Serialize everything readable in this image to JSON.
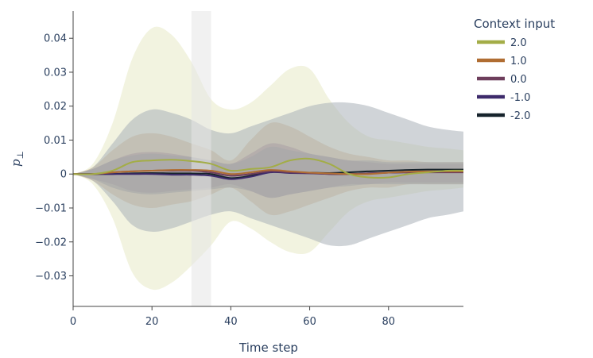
{
  "chart_data": {
    "type": "area",
    "xlabel": "Time step",
    "ylabel": "p",
    "ylabel_subscript": "⊥",
    "xlim": [
      0,
      99
    ],
    "ylim": [
      -0.039,
      0.048
    ],
    "xticks": [
      0,
      20,
      40,
      60,
      80
    ],
    "yticks": [
      -0.03,
      -0.02,
      -0.01,
      0,
      0.01,
      0.02,
      0.03,
      0.04
    ],
    "ytick_labels": [
      "−0.03",
      "−0.02",
      "−0.01",
      "0",
      "0.01",
      "0.02",
      "0.03",
      "0.04"
    ],
    "shaded_region": [
      30,
      35
    ],
    "legend": {
      "title": "Context input",
      "position": "top-right"
    },
    "series": [
      {
        "name": "2.0",
        "color": "#a3ad47",
        "band_color": "#e8e9c7",
        "x": [
          0,
          5,
          10,
          15,
          20,
          25,
          30,
          35,
          40,
          45,
          50,
          55,
          60,
          65,
          70,
          75,
          80,
          85,
          90,
          95,
          99
        ],
        "mean": [
          0,
          0,
          0.001,
          0.0035,
          0.004,
          0.0042,
          0.0038,
          0.003,
          0.001,
          0.0015,
          0.002,
          0.004,
          0.0045,
          0.003,
          0,
          -0.001,
          -0.001,
          0,
          0.0005,
          0.001,
          0.001
        ],
        "upper": [
          0,
          0.003,
          0.015,
          0.034,
          0.043,
          0.041,
          0.033,
          0.022,
          0.019,
          0.021,
          0.026,
          0.031,
          0.031,
          0.022,
          0.015,
          0.011,
          0.01,
          0.009,
          0.008,
          0.0075,
          0.007
        ],
        "lower": [
          0,
          -0.003,
          -0.013,
          -0.029,
          -0.034,
          -0.032,
          -0.027,
          -0.021,
          -0.014,
          -0.016,
          -0.02,
          -0.023,
          -0.023,
          -0.017,
          -0.011,
          -0.008,
          -0.007,
          -0.006,
          -0.005,
          -0.0045,
          -0.004
        ]
      },
      {
        "name": "1.0",
        "color": "#b06d32",
        "band_color": "#d5b88a",
        "x": [
          0,
          5,
          10,
          15,
          20,
          25,
          30,
          35,
          40,
          45,
          50,
          55,
          60,
          65,
          70,
          75,
          80,
          85,
          90,
          95,
          99
        ],
        "mean": [
          0,
          0,
          0.0005,
          0.0008,
          0.001,
          0.0012,
          0.0012,
          0.001,
          0,
          0.0005,
          0.0012,
          0.0008,
          0.0004,
          0.0002,
          0,
          0,
          0.0004,
          0.0007,
          0.0008,
          0.0008,
          0.0008
        ],
        "upper": [
          0,
          0.002,
          0.007,
          0.011,
          0.012,
          0.011,
          0.009,
          0.007,
          0.004,
          0.01,
          0.015,
          0.014,
          0.011,
          0.008,
          0.006,
          0.005,
          0.004,
          0.004,
          0.0035,
          0.0035,
          0.0035
        ],
        "lower": [
          0,
          -0.002,
          -0.006,
          -0.009,
          -0.01,
          -0.009,
          -0.008,
          -0.006,
          -0.004,
          -0.008,
          -0.012,
          -0.011,
          -0.009,
          -0.007,
          -0.005,
          -0.004,
          -0.004,
          -0.003,
          -0.003,
          -0.003,
          -0.003
        ]
      },
      {
        "name": "0.0",
        "color": "#6e3e5c",
        "band_color": "#a98a8e",
        "x": [
          0,
          5,
          10,
          15,
          20,
          25,
          30,
          35,
          40,
          45,
          50,
          55,
          60,
          65,
          70,
          75,
          80,
          85,
          90,
          95,
          99
        ],
        "mean": [
          0,
          0,
          0.0005,
          0.0008,
          0.001,
          0.001,
          0.001,
          0.0005,
          -0.0005,
          0,
          0.0008,
          0.0005,
          0.0003,
          0,
          0,
          0.0002,
          0.0004,
          0.0005,
          0.0005,
          0.0005,
          0.0005
        ],
        "upper": [
          0,
          0.0015,
          0.004,
          0.006,
          0.0065,
          0.006,
          0.005,
          0.004,
          0.003,
          0.006,
          0.009,
          0.008,
          0.006,
          0.005,
          0.004,
          0.0035,
          0.003,
          0.003,
          0.003,
          0.003,
          0.003
        ],
        "lower": [
          0,
          -0.0015,
          -0.003,
          -0.005,
          -0.0055,
          -0.005,
          -0.0045,
          -0.004,
          -0.003,
          -0.005,
          -0.007,
          -0.006,
          -0.005,
          -0.004,
          -0.003,
          -0.003,
          -0.0025,
          -0.0025,
          -0.0025,
          -0.0025,
          -0.0025
        ]
      },
      {
        "name": "-1.0",
        "color": "#3d2a6b",
        "band_color": "#9f9a97",
        "x": [
          0,
          5,
          10,
          15,
          20,
          25,
          30,
          35,
          40,
          45,
          50,
          55,
          60,
          65,
          70,
          75,
          80,
          85,
          90,
          95,
          99
        ],
        "mean": [
          0,
          0,
          0,
          0,
          0,
          -0.0002,
          -0.0002,
          -0.0005,
          -0.0015,
          -0.0008,
          0.0005,
          0.0003,
          0.0002,
          0,
          0,
          0.0002,
          0.0004,
          0.0005,
          0.0006,
          0.0006,
          0.0006
        ],
        "upper": [
          0,
          0.0015,
          0.004,
          0.0055,
          0.006,
          0.0055,
          0.005,
          0.004,
          0.003,
          0.005,
          0.008,
          0.007,
          0.006,
          0.005,
          0.004,
          0.004,
          0.0035,
          0.0035,
          0.0035,
          0.0035,
          0.0035
        ],
        "lower": [
          0,
          -0.0015,
          -0.004,
          -0.0055,
          -0.006,
          -0.0055,
          -0.005,
          -0.0045,
          -0.004,
          -0.005,
          -0.007,
          -0.006,
          -0.005,
          -0.004,
          -0.0035,
          -0.003,
          -0.003,
          -0.003,
          -0.003,
          -0.003,
          -0.003
        ]
      },
      {
        "name": "-2.0",
        "color": "#16232c",
        "band_color": "#aab0b8",
        "x": [
          0,
          5,
          10,
          15,
          20,
          25,
          30,
          35,
          40,
          45,
          50,
          55,
          60,
          65,
          70,
          75,
          80,
          85,
          90,
          95,
          99
        ],
        "mean": [
          0,
          0,
          0,
          0.0002,
          0.0003,
          0.0002,
          0.0002,
          0,
          -0.0012,
          -0.0005,
          0.0008,
          0.0006,
          0.0004,
          0.0003,
          0.0005,
          0.0008,
          0.001,
          0.0012,
          0.0013,
          0.0013,
          0.0013
        ],
        "upper": [
          0,
          0.002,
          0.009,
          0.016,
          0.019,
          0.018,
          0.016,
          0.013,
          0.012,
          0.014,
          0.016,
          0.018,
          0.02,
          0.021,
          0.021,
          0.02,
          0.018,
          0.016,
          0.014,
          0.013,
          0.0125
        ],
        "lower": [
          0,
          -0.002,
          -0.008,
          -0.015,
          -0.017,
          -0.016,
          -0.014,
          -0.012,
          -0.011,
          -0.013,
          -0.015,
          -0.017,
          -0.019,
          -0.021,
          -0.021,
          -0.019,
          -0.017,
          -0.015,
          -0.013,
          -0.012,
          -0.011
        ]
      }
    ]
  }
}
